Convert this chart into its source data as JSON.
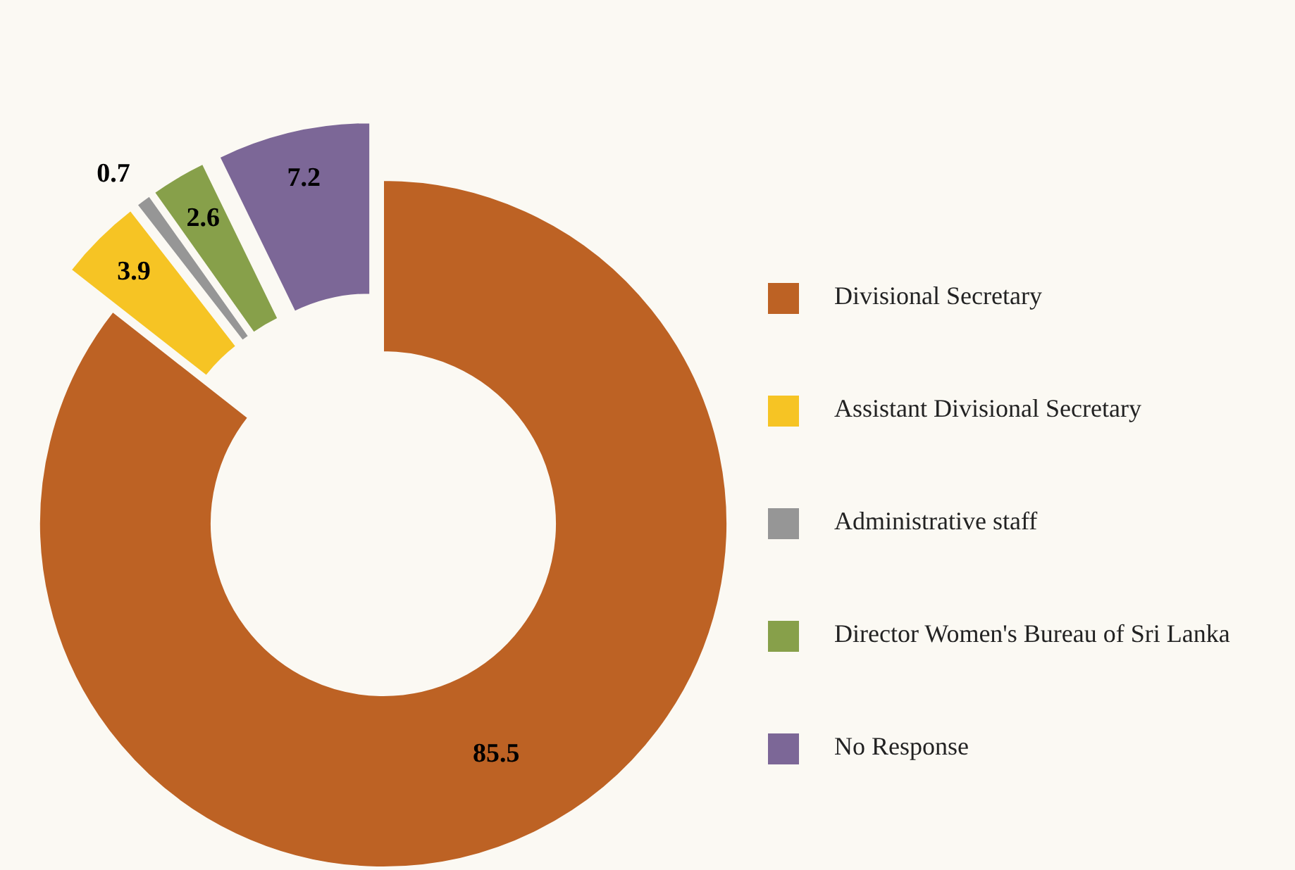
{
  "chart_data": {
    "type": "donut",
    "categories": [
      "Divisional Secretary",
      "Assistant Divisional Secretary",
      "Administrative staff",
      "Director Women's Bureau of Sri Lanka",
      "No Response"
    ],
    "values": [
      85.5,
      3.9,
      0.7,
      2.6,
      7.2
    ],
    "colors": [
      "#bd6224",
      "#f6c424",
      "#969696",
      "#87a04a",
      "#7c6797"
    ],
    "data_labels": true,
    "legend": "right"
  }
}
